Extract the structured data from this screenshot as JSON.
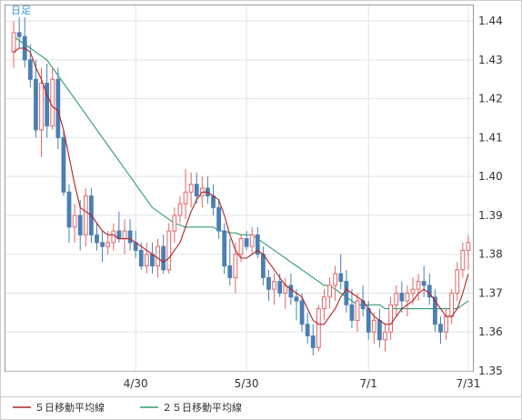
{
  "chart_data": {
    "type": "candlestick",
    "title": "日足",
    "x_ticks": [
      "4/30",
      "5/30",
      "7/1",
      "7/31"
    ],
    "y_ticks": [
      "1.44",
      "1.43",
      "1.42",
      "1.41",
      "1.40",
      "1.39",
      "1.38",
      "1.37",
      "1.36",
      "1.35"
    ],
    "ylim": [
      1.35,
      1.444
    ],
    "grid": true,
    "legend_position": "bottom",
    "colors": {
      "up": "#e06666",
      "down": "#4a7fb5",
      "ma5": "#b22222",
      "ma25": "#2e9e6b"
    },
    "series": [
      {
        "name": "５日移動平均線",
        "color": "#b22222"
      },
      {
        "name": "２５日移動平均線",
        "color": "#2e9e6b"
      }
    ],
    "candles": [
      [
        1.432,
        1.44,
        1.428,
        1.437
      ],
      [
        1.437,
        1.441,
        1.433,
        1.436
      ],
      [
        1.436,
        1.441,
        1.428,
        1.43
      ],
      [
        1.43,
        1.434,
        1.423,
        1.425
      ],
      [
        1.425,
        1.43,
        1.41,
        1.412
      ],
      [
        1.412,
        1.428,
        1.405,
        1.424
      ],
      [
        1.424,
        1.429,
        1.41,
        1.413
      ],
      [
        1.413,
        1.428,
        1.412,
        1.425
      ],
      [
        1.425,
        1.428,
        1.407,
        1.41
      ],
      [
        1.41,
        1.412,
        1.395,
        1.396
      ],
      [
        1.396,
        1.398,
        1.383,
        1.387
      ],
      [
        1.387,
        1.393,
        1.383,
        1.39
      ],
      [
        1.39,
        1.394,
        1.381,
        1.385
      ],
      [
        1.385,
        1.397,
        1.382,
        1.395
      ],
      [
        1.395,
        1.397,
        1.383,
        1.385
      ],
      [
        1.385,
        1.388,
        1.381,
        1.383
      ],
      [
        1.383,
        1.386,
        1.378,
        1.382
      ],
      [
        1.382,
        1.386,
        1.38,
        1.383
      ],
      [
        1.383,
        1.388,
        1.381,
        1.386
      ],
      [
        1.386,
        1.391,
        1.383,
        1.384
      ],
      [
        1.384,
        1.389,
        1.38,
        1.386
      ],
      [
        1.386,
        1.389,
        1.381,
        1.383
      ],
      [
        1.383,
        1.386,
        1.379,
        1.381
      ],
      [
        1.381,
        1.383,
        1.376,
        1.377
      ],
      [
        1.377,
        1.383,
        1.375,
        1.38
      ],
      [
        1.38,
        1.383,
        1.375,
        1.377
      ],
      [
        1.377,
        1.384,
        1.374,
        1.382
      ],
      [
        1.382,
        1.385,
        1.375,
        1.376
      ],
      [
        1.376,
        1.388,
        1.375,
        1.386
      ],
      [
        1.386,
        1.392,
        1.383,
        1.39
      ],
      [
        1.39,
        1.395,
        1.388,
        1.393
      ],
      [
        1.393,
        1.402,
        1.389,
        1.396
      ],
      [
        1.396,
        1.401,
        1.392,
        1.398
      ],
      [
        1.398,
        1.401,
        1.393,
        1.395
      ],
      [
        1.395,
        1.4,
        1.392,
        1.397
      ],
      [
        1.397,
        1.4,
        1.393,
        1.395
      ],
      [
        1.395,
        1.398,
        1.39,
        1.392
      ],
      [
        1.392,
        1.394,
        1.384,
        1.386
      ],
      [
        1.386,
        1.388,
        1.375,
        1.377
      ],
      [
        1.377,
        1.384,
        1.372,
        1.374
      ],
      [
        1.374,
        1.383,
        1.37,
        1.38
      ],
      [
        1.38,
        1.385,
        1.378,
        1.384
      ],
      [
        1.384,
        1.386,
        1.381,
        1.382
      ],
      [
        1.382,
        1.387,
        1.38,
        1.385
      ],
      [
        1.385,
        1.387,
        1.379,
        1.38
      ],
      [
        1.38,
        1.382,
        1.372,
        1.374
      ],
      [
        1.374,
        1.376,
        1.368,
        1.371
      ],
      [
        1.371,
        1.375,
        1.367,
        1.373
      ],
      [
        1.373,
        1.375,
        1.369,
        1.37
      ],
      [
        1.37,
        1.374,
        1.366,
        1.372
      ],
      [
        1.372,
        1.375,
        1.367,
        1.369
      ],
      [
        1.369,
        1.371,
        1.363,
        1.368
      ],
      [
        1.368,
        1.37,
        1.36,
        1.362
      ],
      [
        1.362,
        1.365,
        1.357,
        1.359
      ],
      [
        1.359,
        1.362,
        1.354,
        1.356
      ],
      [
        1.356,
        1.367,
        1.355,
        1.366
      ],
      [
        1.366,
        1.371,
        1.363,
        1.369
      ],
      [
        1.369,
        1.374,
        1.366,
        1.372
      ],
      [
        1.372,
        1.377,
        1.368,
        1.375
      ],
      [
        1.375,
        1.38,
        1.371,
        1.373
      ],
      [
        1.373,
        1.376,
        1.365,
        1.367
      ],
      [
        1.367,
        1.371,
        1.361,
        1.363
      ],
      [
        1.363,
        1.37,
        1.36,
        1.368
      ],
      [
        1.368,
        1.372,
        1.364,
        1.366
      ],
      [
        1.366,
        1.368,
        1.358,
        1.36
      ],
      [
        1.36,
        1.365,
        1.357,
        1.363
      ],
      [
        1.363,
        1.366,
        1.356,
        1.358
      ],
      [
        1.358,
        1.362,
        1.355,
        1.36
      ],
      [
        1.36,
        1.369,
        1.358,
        1.367
      ],
      [
        1.367,
        1.372,
        1.364,
        1.37
      ],
      [
        1.37,
        1.373,
        1.365,
        1.368
      ],
      [
        1.368,
        1.372,
        1.364,
        1.37
      ],
      [
        1.37,
        1.374,
        1.367,
        1.371
      ],
      [
        1.371,
        1.375,
        1.368,
        1.373
      ],
      [
        1.373,
        1.377,
        1.369,
        1.372
      ],
      [
        1.372,
        1.375,
        1.367,
        1.369
      ],
      [
        1.369,
        1.371,
        1.36,
        1.362
      ],
      [
        1.362,
        1.364,
        1.357,
        1.36
      ],
      [
        1.36,
        1.366,
        1.358,
        1.364
      ],
      [
        1.364,
        1.371,
        1.362,
        1.37
      ],
      [
        1.37,
        1.378,
        1.368,
        1.376
      ],
      [
        1.376,
        1.383,
        1.374,
        1.381
      ],
      [
        1.381,
        1.385,
        1.376,
        1.383
      ]
    ],
    "ma5": [
      1.432,
      1.433,
      1.433,
      1.432,
      1.428,
      1.425,
      1.421,
      1.418,
      1.417,
      1.412,
      1.405,
      1.398,
      1.392,
      1.391,
      1.39,
      1.388,
      1.386,
      1.385,
      1.385,
      1.384,
      1.384,
      1.384,
      1.383,
      1.382,
      1.381,
      1.38,
      1.379,
      1.378,
      1.379,
      1.381,
      1.383,
      1.387,
      1.391,
      1.394,
      1.396,
      1.396,
      1.395,
      1.394,
      1.39,
      1.385,
      1.381,
      1.379,
      1.379,
      1.38,
      1.381,
      1.38,
      1.378,
      1.376,
      1.374,
      1.372,
      1.371,
      1.37,
      1.369,
      1.366,
      1.363,
      1.362,
      1.362,
      1.364,
      1.366,
      1.369,
      1.371,
      1.37,
      1.369,
      1.368,
      1.366,
      1.364,
      1.363,
      1.362,
      1.362,
      1.364,
      1.366,
      1.367,
      1.368,
      1.37,
      1.371,
      1.37,
      1.368,
      1.366,
      1.364,
      1.364,
      1.366,
      1.37,
      1.375
    ],
    "ma25": [
      1.436,
      1.435,
      1.434,
      1.433,
      1.432,
      1.431,
      1.43,
      1.428,
      1.426,
      1.424,
      1.422,
      1.42,
      1.418,
      1.416,
      1.414,
      1.412,
      1.41,
      1.408,
      1.406,
      1.404,
      1.402,
      1.4,
      1.398,
      1.396,
      1.394,
      1.392,
      1.391,
      1.39,
      1.389,
      1.388,
      1.3875,
      1.387,
      1.387,
      1.387,
      1.387,
      1.387,
      1.387,
      1.386,
      1.386,
      1.3855,
      1.3855,
      1.385,
      1.385,
      1.385,
      1.384,
      1.383,
      1.382,
      1.381,
      1.38,
      1.379,
      1.378,
      1.377,
      1.376,
      1.375,
      1.374,
      1.373,
      1.372,
      1.372,
      1.371,
      1.37,
      1.369,
      1.368,
      1.367,
      1.367,
      1.367,
      1.367,
      1.367,
      1.366,
      1.366,
      1.366,
      1.366,
      1.366,
      1.366,
      1.366,
      1.366,
      1.366,
      1.366,
      1.366,
      1.366,
      1.366,
      1.366,
      1.367,
      1.368
    ],
    "tick_indices": [
      22,
      42,
      64,
      82
    ]
  }
}
